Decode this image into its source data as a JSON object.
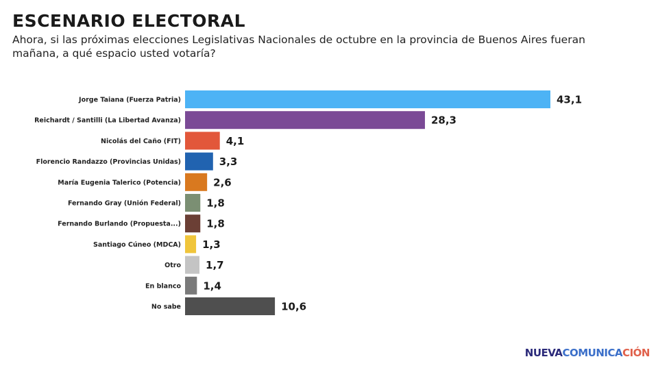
{
  "title": "ESCENARIO ELECTORAL",
  "subtitle": "Ahora, si las próximas elecciones Legislativas Nacionales de octubre en la provincia de Buenos Aires fueran mañana, a qué espacio usted votaría?",
  "chart_data": {
    "type": "bar",
    "orientation": "horizontal",
    "categories": [
      "Jorge Taiana (Fuerza Patria)",
      "Reichardt / Santilli (La Libertad Avanza)",
      "Nicolás del Caño (FIT)",
      "Florencio Randazzo (Provincias Unidas)",
      "María Eugenia Talerico (Potencia)",
      "Fernando Gray (Unión Federal)",
      "Fernando Burlando (Propuesta...)",
      "Santiago Cúneo (MDCA)",
      "Otro",
      "En blanco",
      "No sabe"
    ],
    "values": [
      43.1,
      28.3,
      4.1,
      3.3,
      2.6,
      1.8,
      1.8,
      1.3,
      1.7,
      1.4,
      10.6
    ],
    "value_labels": [
      "43,1",
      "28,3",
      "4,1",
      "3,3",
      "2,6",
      "1,8",
      "1,8",
      "1,3",
      "1,7",
      "1,4",
      "10,6"
    ],
    "colors": [
      "#4db3f5",
      "#7b4a96",
      "#e2573a",
      "#2163b0",
      "#d9791f",
      "#7b8f73",
      "#6b3f35",
      "#f0c53b",
      "#c4c4c4",
      "#7a7a7a",
      "#4f4f4f"
    ],
    "xlim": [
      0,
      43.1
    ],
    "grid": false,
    "legend": "none"
  },
  "brand": {
    "part1": "NUEVA",
    "part2": "COMUNICA",
    "part3": "CIÓN"
  }
}
